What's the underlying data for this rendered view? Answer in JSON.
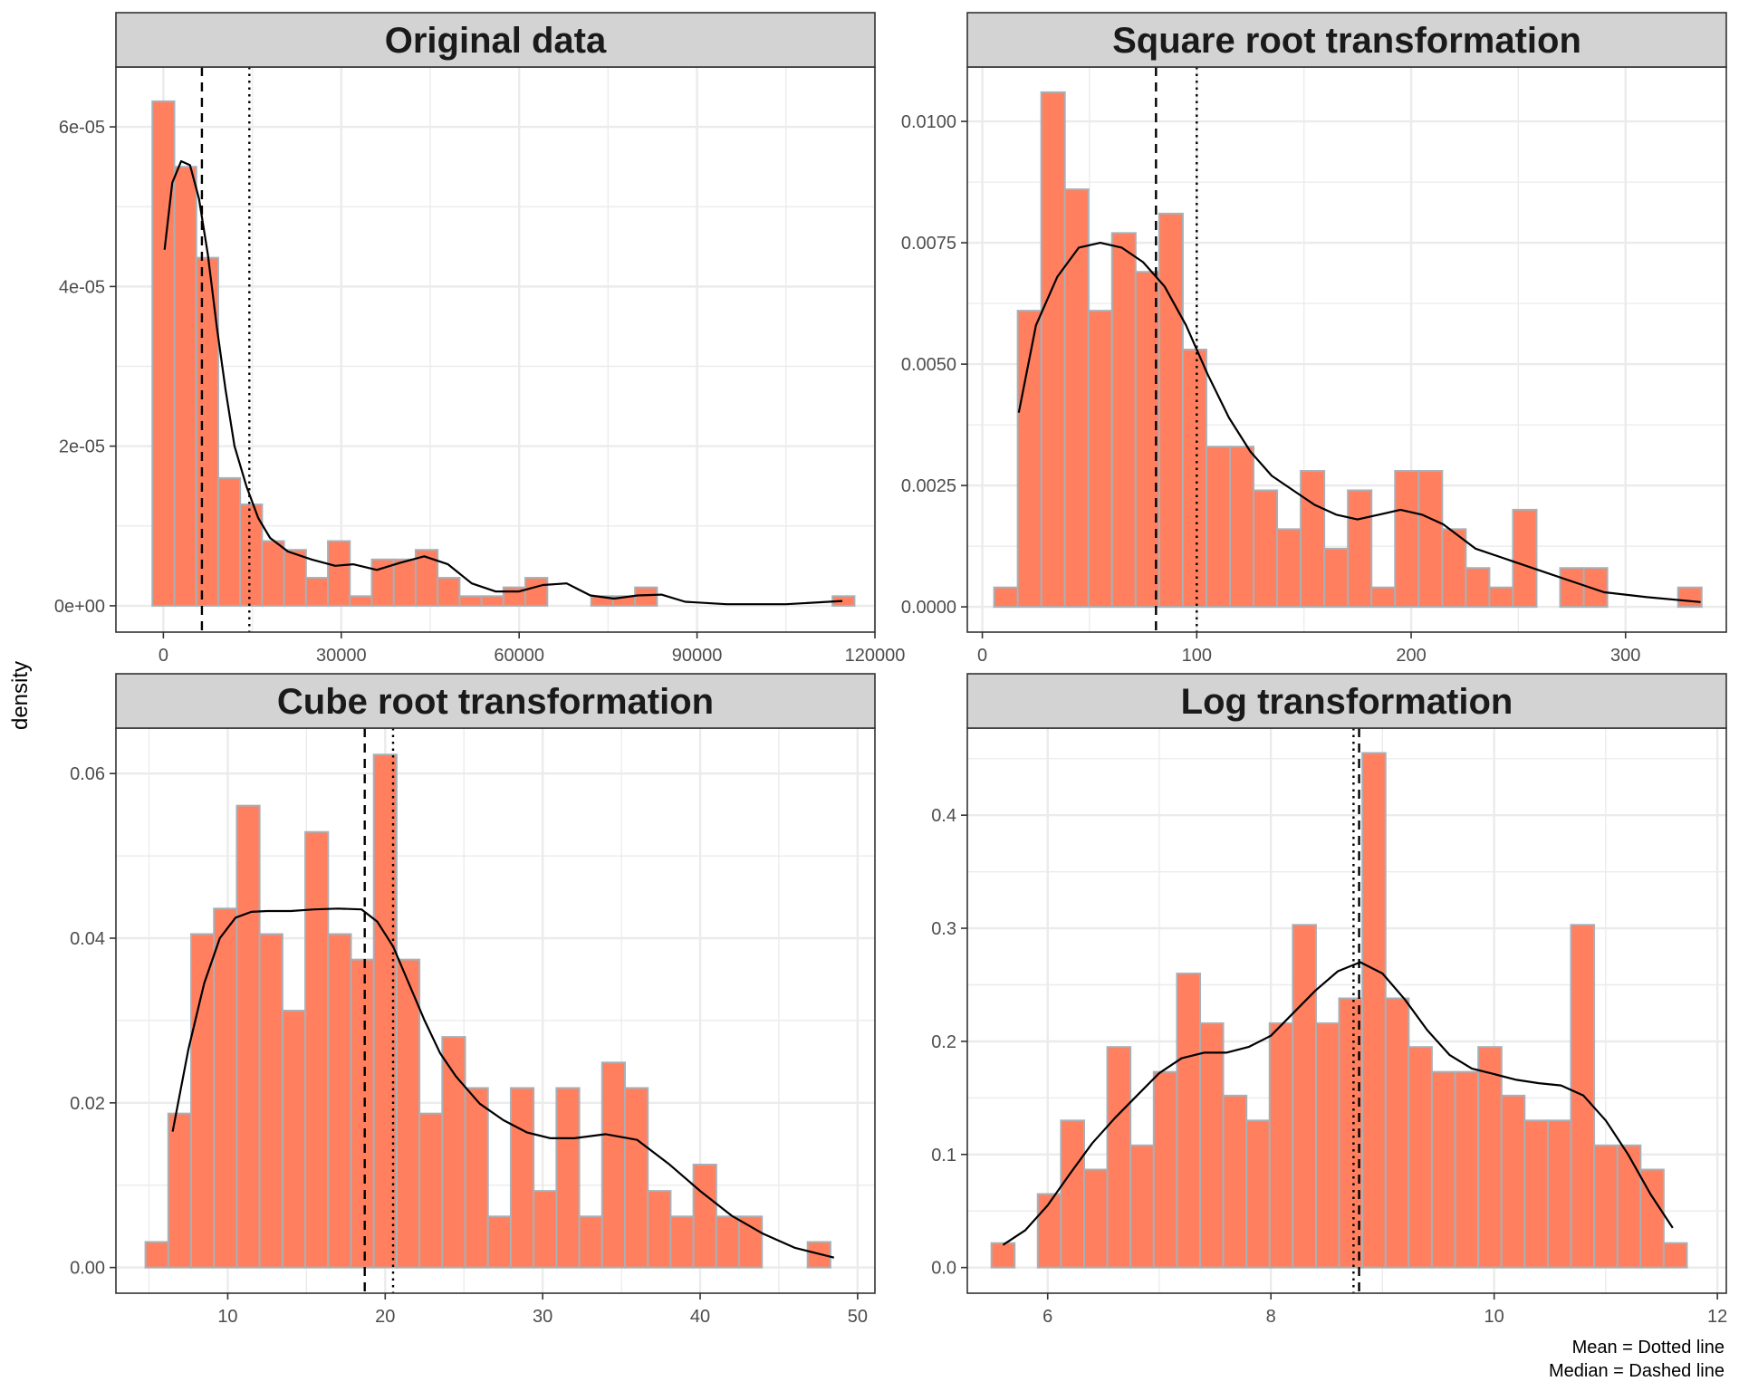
{
  "ylabel": "density",
  "caption": [
    "Mean = Dotted line",
    "Median = Dashed line"
  ],
  "colors": {
    "bar_fill": "#FF7F5F",
    "bar_stroke": "#A9B0B5",
    "strip_bg": "#D3D3D3",
    "grid": "#EBEBEB",
    "panel_border": "#333333",
    "curve": "#000000"
  },
  "chart_data": [
    {
      "type": "bar",
      "title": "Original data",
      "bin_width": 3700,
      "xlim": [
        -8000,
        120000
      ],
      "ylim": [
        -3.3e-06,
        6.75e-05
      ],
      "x_ticks": [
        0,
        30000,
        60000,
        90000,
        120000
      ],
      "x_tick_labels": [
        "0",
        "30000",
        "60000",
        "90000",
        "120000"
      ],
      "y_ticks": [
        0,
        2e-05,
        4e-05,
        6e-05
      ],
      "y_tick_labels": [
        "0e+00",
        "2e-05",
        "4e-05",
        "6e-05"
      ],
      "bins_x": [
        0,
        3700,
        7400,
        11100,
        14800,
        18500,
        22200,
        25900,
        29600,
        33300,
        37000,
        40700,
        44400,
        48100,
        51800,
        55500,
        59200,
        62900,
        66600,
        70300,
        74000,
        77700,
        81400,
        85100,
        88800,
        92500,
        96200,
        99900,
        103600,
        107300,
        111000,
        114700
      ],
      "values": [
        6.32e-05,
        5.5e-05,
        4.36e-05,
        1.6e-05,
        1.27e-05,
        8.1e-06,
        7e-06,
        3.5e-06,
        8.1e-06,
        1.2e-06,
        5.8e-06,
        5.8e-06,
        7e-06,
        3.5e-06,
        1.2e-06,
        1.2e-06,
        2.3e-06,
        3.5e-06,
        0,
        0,
        1.2e-06,
        1.2e-06,
        2.3e-06,
        0,
        0,
        0,
        0,
        0,
        0,
        0,
        0,
        1.2e-06
      ],
      "density_x": [
        200,
        1500,
        3000,
        4500,
        6000,
        7500,
        9000,
        10500,
        12000,
        14000,
        16000,
        18000,
        21000,
        25000,
        29000,
        32000,
        36000,
        40000,
        44000,
        48000,
        52000,
        56000,
        60000,
        64000,
        68000,
        72000,
        76000,
        80000,
        84000,
        88000,
        95000,
        105000,
        114500
      ],
      "density_y": [
        4.46e-05,
        5.3e-05,
        5.57e-05,
        5.52e-05,
        5.1e-05,
        4.4e-05,
        3.5e-05,
        2.7e-05,
        2e-05,
        1.5e-05,
        1.1e-05,
        8.5e-06,
        6.8e-06,
        5.8e-06,
        5e-06,
        5.2e-06,
        4.5e-06,
        5.4e-06,
        6.2e-06,
        5.2e-06,
        2.8e-06,
        1.8e-06,
        1.8e-06,
        2.6e-06,
        2.8e-06,
        1.3e-06,
        9e-07,
        1.3e-06,
        1.4e-06,
        5e-07,
        2e-07,
        2e-07,
        6e-07
      ],
      "median": 6500,
      "mean": 14500
    },
    {
      "type": "bar",
      "title": "Square root transformation",
      "bin_width": 11,
      "xlim": [
        -7,
        347
      ],
      "ylim": [
        -0.00052,
        0.01112
      ],
      "x_ticks": [
        0,
        100,
        200,
        300
      ],
      "x_tick_labels": [
        "0",
        "100",
        "200",
        "300"
      ],
      "y_ticks": [
        0,
        0.0025,
        0.005,
        0.0075,
        0.01
      ],
      "y_tick_labels": [
        "0.0000",
        "0.0025",
        "0.0050",
        "0.0075",
        "0.0100"
      ],
      "bins_x": [
        11,
        22,
        33,
        44,
        55,
        66,
        77,
        88,
        99,
        110,
        121,
        132,
        143,
        154,
        165,
        176,
        187,
        198,
        209,
        220,
        231,
        242,
        253,
        264,
        275,
        286,
        297,
        308,
        319,
        330
      ],
      "values": [
        0.0004,
        0.0061,
        0.0106,
        0.0086,
        0.0061,
        0.0077,
        0.0069,
        0.0081,
        0.0053,
        0.0033,
        0.0033,
        0.0024,
        0.0016,
        0.0028,
        0.0012,
        0.0024,
        0.0004,
        0.0028,
        0.0028,
        0.0016,
        0.0008,
        0.0004,
        0.002,
        0,
        0.0008,
        0.0008,
        0,
        0,
        0,
        0.0004
      ],
      "density_x": [
        17,
        25,
        35,
        45,
        55,
        65,
        75,
        85,
        95,
        105,
        115,
        125,
        135,
        145,
        155,
        165,
        175,
        185,
        195,
        205,
        215,
        230,
        250,
        270,
        290,
        310,
        335
      ],
      "density_y": [
        0.004,
        0.0058,
        0.0068,
        0.0074,
        0.0075,
        0.0074,
        0.0071,
        0.0066,
        0.0058,
        0.0048,
        0.0039,
        0.0032,
        0.0027,
        0.0024,
        0.0021,
        0.0019,
        0.0018,
        0.0019,
        0.002,
        0.0019,
        0.0017,
        0.0012,
        0.0009,
        0.0006,
        0.0003,
        0.0002,
        0.0001
      ],
      "median": 81,
      "mean": 100
    },
    {
      "type": "bar",
      "title": "Cube root transformation",
      "bin_width": 1.45,
      "xlim": [
        2.9,
        51.1
      ],
      "ylim": [
        -0.00312,
        0.06552
      ],
      "x_ticks": [
        10,
        20,
        30,
        40,
        50
      ],
      "x_tick_labels": [
        "10",
        "20",
        "30",
        "40",
        "50"
      ],
      "y_ticks": [
        0,
        0.02,
        0.04,
        0.06
      ],
      "y_tick_labels": [
        "0.00",
        "0.02",
        "0.04",
        "0.06"
      ],
      "bins_x": [
        5.5,
        6.95,
        8.4,
        9.85,
        11.3,
        12.75,
        14.2,
        15.65,
        17.1,
        18.55,
        20.0,
        21.45,
        22.9,
        24.35,
        25.8,
        27.25,
        28.7,
        30.15,
        31.6,
        33.05,
        34.5,
        35.95,
        37.4,
        38.85,
        40.3,
        41.75,
        43.2,
        44.65,
        46.1,
        47.55
      ],
      "values": [
        0.0031,
        0.0187,
        0.0405,
        0.0436,
        0.0561,
        0.0405,
        0.0312,
        0.0529,
        0.0405,
        0.0374,
        0.0623,
        0.0374,
        0.0187,
        0.028,
        0.0218,
        0.0062,
        0.0218,
        0.0093,
        0.0218,
        0.0062,
        0.0249,
        0.0218,
        0.0093,
        0.0062,
        0.0125,
        0.0062,
        0.0062,
        0,
        0,
        0.0031
      ],
      "density_x": [
        6.5,
        7.5,
        8.5,
        9.5,
        10.5,
        11.5,
        12.5,
        14,
        15.5,
        17,
        18.5,
        19.5,
        20.5,
        21.5,
        22.5,
        23.5,
        24.5,
        26,
        27.5,
        29,
        30.5,
        32,
        34,
        36,
        38,
        40,
        42,
        44,
        46,
        48.5
      ],
      "density_y": [
        0.0165,
        0.0265,
        0.0345,
        0.04,
        0.0425,
        0.0432,
        0.0433,
        0.0433,
        0.0435,
        0.0436,
        0.0435,
        0.042,
        0.039,
        0.0345,
        0.03,
        0.026,
        0.0232,
        0.0199,
        0.0179,
        0.0164,
        0.0157,
        0.0157,
        0.0162,
        0.0155,
        0.0126,
        0.0093,
        0.0063,
        0.0041,
        0.0024,
        0.0012
      ],
      "median": 18.7,
      "mean": 20.5
    },
    {
      "type": "bar",
      "title": "Log transformation",
      "bin_width": 0.2077,
      "xlim": [
        5.28,
        12.08
      ],
      "ylim": [
        -0.0227,
        0.477
      ],
      "x_ticks": [
        6,
        8,
        10,
        12
      ],
      "x_tick_labels": [
        "6",
        "8",
        "10",
        "12"
      ],
      "y_ticks": [
        0,
        0.1,
        0.2,
        0.3,
        0.4
      ],
      "y_tick_labels": [
        "0.0",
        "0.1",
        "0.2",
        "0.3",
        "0.4"
      ],
      "bins_x": [
        5.6,
        5.808,
        6.015,
        6.223,
        6.431,
        6.638,
        6.846,
        7.054,
        7.262,
        7.469,
        7.677,
        7.885,
        8.092,
        8.3,
        8.508,
        8.715,
        8.923,
        9.131,
        9.338,
        9.546,
        9.754,
        9.962,
        10.169,
        10.377,
        10.585,
        10.792,
        11.0,
        11.208,
        11.415,
        11.623
      ],
      "values": [
        0.0216,
        0,
        0.065,
        0.13,
        0.0866,
        0.195,
        0.108,
        0.173,
        0.26,
        0.216,
        0.152,
        0.13,
        0.216,
        0.303,
        0.216,
        0.238,
        0.455,
        0.238,
        0.195,
        0.173,
        0.173,
        0.195,
        0.152,
        0.13,
        0.13,
        0.303,
        0.108,
        0.108,
        0.0866,
        0.0216
      ],
      "density_x": [
        5.6,
        5.8,
        6.0,
        6.2,
        6.4,
        6.6,
        6.8,
        7.0,
        7.2,
        7.4,
        7.6,
        7.8,
        8.0,
        8.2,
        8.4,
        8.6,
        8.8,
        9.0,
        9.2,
        9.4,
        9.6,
        9.8,
        10.0,
        10.2,
        10.4,
        10.6,
        10.8,
        11.0,
        11.2,
        11.4,
        11.6
      ],
      "density_y": [
        0.02,
        0.033,
        0.055,
        0.083,
        0.11,
        0.132,
        0.152,
        0.172,
        0.185,
        0.19,
        0.19,
        0.195,
        0.205,
        0.225,
        0.245,
        0.262,
        0.27,
        0.26,
        0.237,
        0.21,
        0.188,
        0.176,
        0.171,
        0.166,
        0.163,
        0.161,
        0.152,
        0.13,
        0.1,
        0.065,
        0.035
      ],
      "median": 8.79,
      "mean": 8.74
    }
  ]
}
